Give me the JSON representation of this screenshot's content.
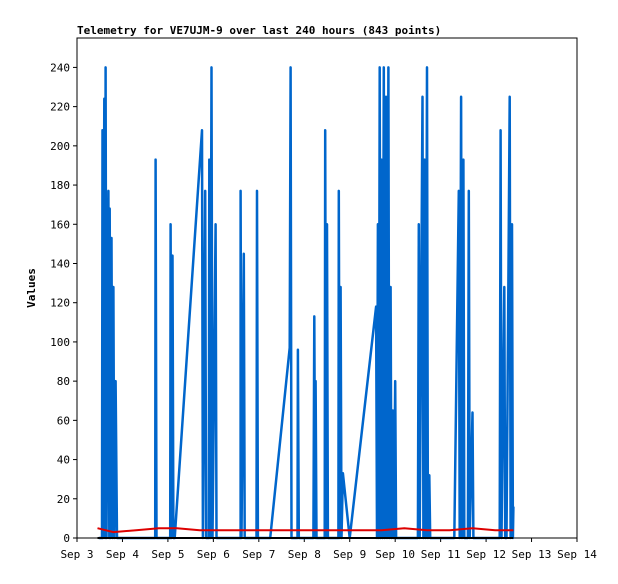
{
  "chart_data": {
    "type": "line",
    "title": "Telemetry for VE7UJM-9 over last 240 hours (843 points)",
    "xlabel": "",
    "ylabel": "Values",
    "xlim": [
      3.0,
      14.0
    ],
    "ylim": [
      0,
      255
    ],
    "x_ticks": [
      {
        "v": 3,
        "label": "Sep 3"
      },
      {
        "v": 4,
        "label": "Sep 4"
      },
      {
        "v": 5,
        "label": "Sep 5"
      },
      {
        "v": 6,
        "label": "Sep 6"
      },
      {
        "v": 7,
        "label": "Sep 7"
      },
      {
        "v": 8,
        "label": "Sep 8"
      },
      {
        "v": 9,
        "label": "Sep 9"
      },
      {
        "v": 10,
        "label": "Sep 10"
      },
      {
        "v": 11,
        "label": "Sep 11"
      },
      {
        "v": 12,
        "label": "Sep 12"
      },
      {
        "v": 13,
        "label": "Sep 13"
      },
      {
        "v": 14,
        "label": "Sep 14"
      }
    ],
    "y_ticks": [
      0,
      20,
      40,
      60,
      80,
      100,
      120,
      140,
      160,
      180,
      200,
      220,
      240
    ],
    "grid": false,
    "series": [
      {
        "color": "#0066cc",
        "points": [
          [
            3.48,
            0
          ],
          [
            3.55,
            0
          ],
          [
            3.56,
            208
          ],
          [
            3.57,
            0
          ],
          [
            3.6,
            224
          ],
          [
            3.62,
            0
          ],
          [
            3.63,
            240
          ],
          [
            3.65,
            0
          ],
          [
            3.69,
            177
          ],
          [
            3.71,
            0
          ],
          [
            3.72,
            168
          ],
          [
            3.74,
            0
          ],
          [
            3.76,
            153
          ],
          [
            3.78,
            0
          ],
          [
            3.8,
            128
          ],
          [
            3.82,
            0
          ],
          [
            3.85,
            80
          ],
          [
            3.88,
            0
          ],
          [
            4.2,
            0
          ],
          [
            4.72,
            0
          ],
          [
            4.73,
            193
          ],
          [
            4.75,
            0
          ],
          [
            5.0,
            0
          ],
          [
            5.05,
            0
          ],
          [
            5.06,
            160
          ],
          [
            5.08,
            0
          ],
          [
            5.1,
            144
          ],
          [
            5.12,
            0
          ],
          [
            5.15,
            0
          ],
          [
            5.75,
            208
          ],
          [
            5.77,
            0
          ],
          [
            5.82,
            177
          ],
          [
            5.84,
            0
          ],
          [
            5.9,
            0
          ],
          [
            5.91,
            193
          ],
          [
            5.93,
            0
          ],
          [
            5.96,
            240
          ],
          [
            5.98,
            0
          ],
          [
            6.05,
            160
          ],
          [
            6.07,
            0
          ],
          [
            6.6,
            0
          ],
          [
            6.6,
            177
          ],
          [
            6.62,
            0
          ],
          [
            6.67,
            145
          ],
          [
            6.69,
            0
          ],
          [
            6.95,
            0
          ],
          [
            6.96,
            177
          ],
          [
            6.98,
            0
          ],
          [
            7.25,
            0
          ],
          [
            7.68,
            97
          ],
          [
            7.7,
            240
          ],
          [
            7.72,
            0
          ],
          [
            7.85,
            0
          ],
          [
            7.86,
            96
          ],
          [
            7.88,
            0
          ],
          [
            8.2,
            0
          ],
          [
            8.22,
            113
          ],
          [
            8.24,
            0
          ],
          [
            8.25,
            80
          ],
          [
            8.27,
            0
          ],
          [
            8.45,
            0
          ],
          [
            8.46,
            208
          ],
          [
            8.48,
            0
          ],
          [
            8.5,
            160
          ],
          [
            8.52,
            0
          ],
          [
            8.75,
            0
          ],
          [
            8.76,
            177
          ],
          [
            8.78,
            0
          ],
          [
            8.8,
            128
          ],
          [
            8.82,
            0
          ],
          [
            8.85,
            33
          ],
          [
            9.0,
            0
          ],
          [
            9.58,
            118
          ],
          [
            9.6,
            0
          ],
          [
            9.62,
            160
          ],
          [
            9.64,
            0
          ],
          [
            9.66,
            240
          ],
          [
            9.68,
            0
          ],
          [
            9.7,
            193
          ],
          [
            9.72,
            0
          ],
          [
            9.75,
            240
          ],
          [
            9.77,
            0
          ],
          [
            9.8,
            225
          ],
          [
            9.82,
            0
          ],
          [
            9.85,
            240
          ],
          [
            9.87,
            0
          ],
          [
            9.9,
            128
          ],
          [
            9.92,
            0
          ],
          [
            9.95,
            65
          ],
          [
            9.97,
            0
          ],
          [
            10.0,
            80
          ],
          [
            10.02,
            0
          ],
          [
            10.5,
            0
          ],
          [
            10.52,
            160
          ],
          [
            10.54,
            0
          ],
          [
            10.6,
            225
          ],
          [
            10.62,
            0
          ],
          [
            10.65,
            193
          ],
          [
            10.67,
            0
          ],
          [
            10.7,
            240
          ],
          [
            10.72,
            0
          ],
          [
            10.75,
            32
          ],
          [
            10.77,
            0
          ],
          [
            11.3,
            0
          ],
          [
            11.4,
            177
          ],
          [
            11.42,
            0
          ],
          [
            11.45,
            225
          ],
          [
            11.47,
            0
          ],
          [
            11.5,
            193
          ],
          [
            11.52,
            0
          ],
          [
            11.6,
            0
          ],
          [
            11.62,
            177
          ],
          [
            11.64,
            0
          ],
          [
            11.7,
            64
          ],
          [
            11.72,
            0
          ],
          [
            12.3,
            0
          ],
          [
            12.32,
            208
          ],
          [
            12.34,
            0
          ],
          [
            12.4,
            128
          ],
          [
            12.42,
            0
          ],
          [
            12.45,
            0
          ],
          [
            12.5,
            160
          ],
          [
            12.52,
            225
          ],
          [
            12.54,
            0
          ],
          [
            12.57,
            160
          ],
          [
            12.59,
            0
          ],
          [
            12.6,
            16
          ]
        ]
      },
      {
        "color": "#dd0000",
        "points": [
          [
            3.45,
            5
          ],
          [
            3.8,
            3
          ],
          [
            4.3,
            4
          ],
          [
            4.8,
            5
          ],
          [
            5.2,
            5
          ],
          [
            5.7,
            4
          ],
          [
            6.2,
            4
          ],
          [
            6.7,
            4
          ],
          [
            7.2,
            4
          ],
          [
            7.7,
            4
          ],
          [
            8.2,
            4
          ],
          [
            8.7,
            4
          ],
          [
            9.2,
            4
          ],
          [
            9.7,
            4
          ],
          [
            10.2,
            5
          ],
          [
            10.7,
            4
          ],
          [
            11.2,
            4
          ],
          [
            11.7,
            5
          ],
          [
            12.2,
            4
          ],
          [
            12.6,
            4
          ]
        ]
      },
      {
        "color": "#000000",
        "points": [
          [
            3.45,
            0
          ],
          [
            12.6,
            0
          ]
        ]
      }
    ]
  }
}
